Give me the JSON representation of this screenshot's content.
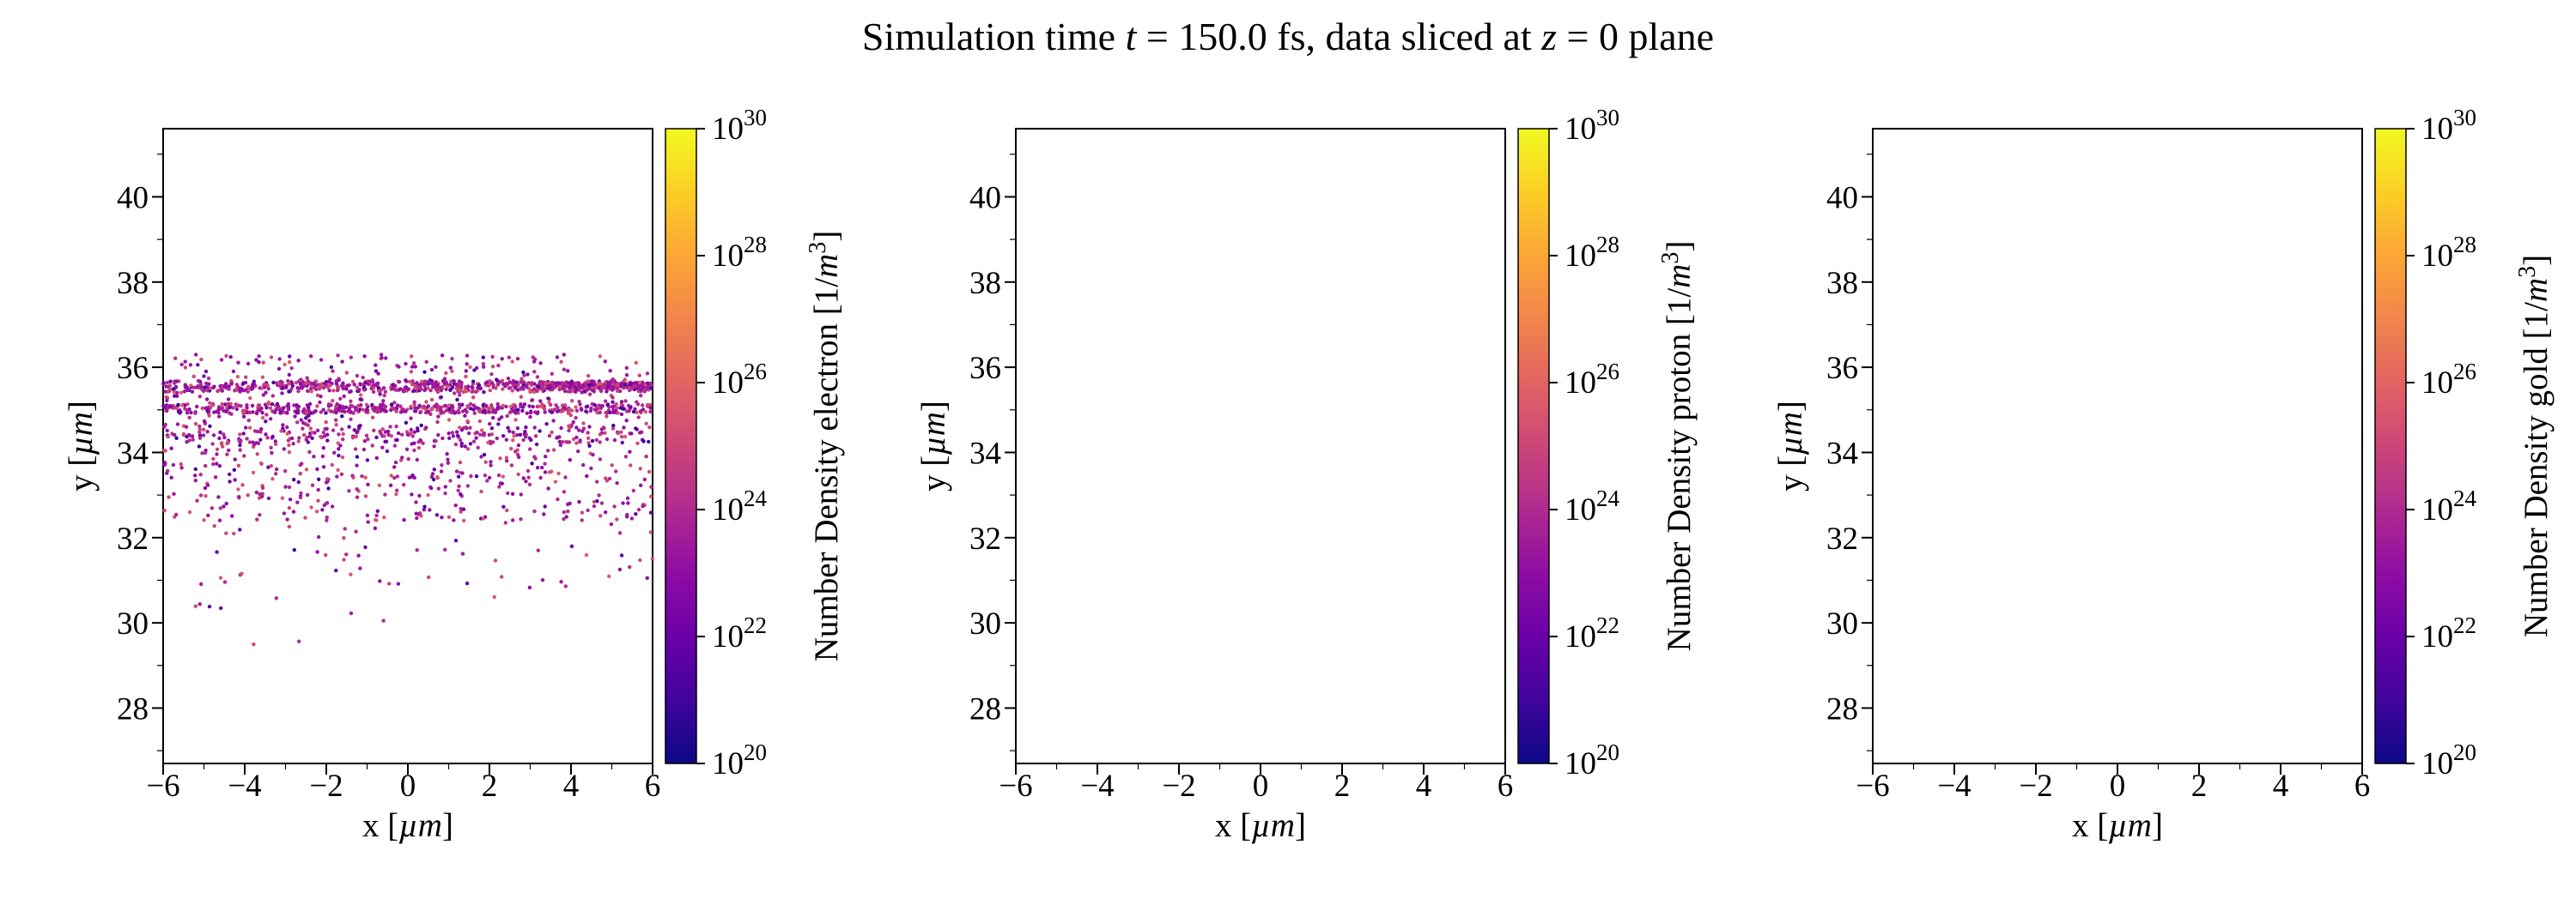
{
  "title": {
    "prefix": "Simulation time ",
    "var1": "t",
    "mid": " = 150.0 fs, data sliced at ",
    "var2": "z",
    "suffix": " = 0 plane"
  },
  "chart_data": {
    "type": "scatter",
    "xlabel": "x [µm]",
    "ylabel": "y [µm]",
    "layout": {
      "xlim": [
        -6,
        6
      ],
      "ylim": [
        26.7,
        41.6
      ],
      "x_ticks": [
        -6,
        -4,
        -2,
        0,
        2,
        4,
        6
      ],
      "x_minor_ticks": [
        -5,
        -3,
        -1,
        1,
        3,
        5
      ],
      "y_ticks": [
        28,
        30,
        32,
        34,
        36,
        38,
        40
      ],
      "y_minor_ticks": [
        27,
        29,
        31,
        33,
        35,
        37,
        39,
        41
      ],
      "grid": false,
      "colorbar": {
        "scale": "log",
        "min_exponent": 20,
        "max_exponent": 30,
        "tick_exponents": [
          20,
          22,
          24,
          26,
          28,
          30
        ],
        "colormap": "plasma",
        "stops": [
          [
            0.0,
            "#0d0887"
          ],
          [
            0.1,
            "#41049d"
          ],
          [
            0.2,
            "#6a00a8"
          ],
          [
            0.3,
            "#8f0da4"
          ],
          [
            0.4,
            "#b12a90"
          ],
          [
            0.5,
            "#cc4778"
          ],
          [
            0.6,
            "#e16462"
          ],
          [
            0.7,
            "#f2844b"
          ],
          [
            0.8,
            "#fca636"
          ],
          [
            0.9,
            "#fcce25"
          ],
          [
            1.0,
            "#f0f921"
          ]
        ]
      }
    },
    "panels": [
      {
        "name": "electron",
        "colorbar_label": "Number Density electron",
        "colorbar_unit": "1/m^3",
        "scatter": {
          "seed": 7,
          "point_radius": 2.2,
          "palette": [
            {
              "color": "#b12a90",
              "weight": 3
            },
            {
              "color": "#9c179e",
              "weight": 2.5
            },
            {
              "color": "#cc4778",
              "weight": 2
            },
            {
              "color": "#8f0da4",
              "weight": 2
            },
            {
              "color": "#6a00a8",
              "weight": 1
            },
            {
              "color": "#d8576b",
              "weight": 0.8
            },
            {
              "color": "#41049d",
              "weight": 0.4
            }
          ],
          "bands": [
            {
              "y_min": 35.42,
              "y_max": 35.68,
              "x_min": -6,
              "x_max": 6,
              "count": 520
            },
            {
              "y_min": 35.5,
              "y_max": 35.64,
              "x_min": 3.2,
              "x_max": 6,
              "count": 220
            },
            {
              "y_min": 34.92,
              "y_max": 35.14,
              "x_min": -6,
              "x_max": 6,
              "count": 430
            },
            {
              "y_min": 34.2,
              "y_max": 34.6,
              "x_min": -6,
              "x_max": 6,
              "count": 170
            },
            {
              "y_min": 33.4,
              "y_max": 36.3,
              "x_min": -6,
              "x_max": 6,
              "count": 620
            },
            {
              "y_min": 32.4,
              "y_max": 33.5,
              "x_min": -6,
              "x_max": 6,
              "count": 200
            },
            {
              "y_min": 30.8,
              "y_max": 32.5,
              "x_min": -6,
              "x_max": 6,
              "count": 60
            },
            {
              "y_min": 29.3,
              "y_max": 30.9,
              "x_min": -6,
              "x_max": 6,
              "count": 10
            }
          ]
        }
      },
      {
        "name": "proton",
        "colorbar_label": "Number Density proton",
        "colorbar_unit": "1/m^3",
        "scatter": {
          "seed": 7,
          "point_radius": 2.2,
          "palette": [],
          "bands": []
        }
      },
      {
        "name": "gold",
        "colorbar_label": "Number Density gold",
        "colorbar_unit": "1/m^3",
        "scatter": {
          "seed": 7,
          "point_radius": 2.2,
          "palette": [],
          "bands": []
        }
      }
    ]
  }
}
